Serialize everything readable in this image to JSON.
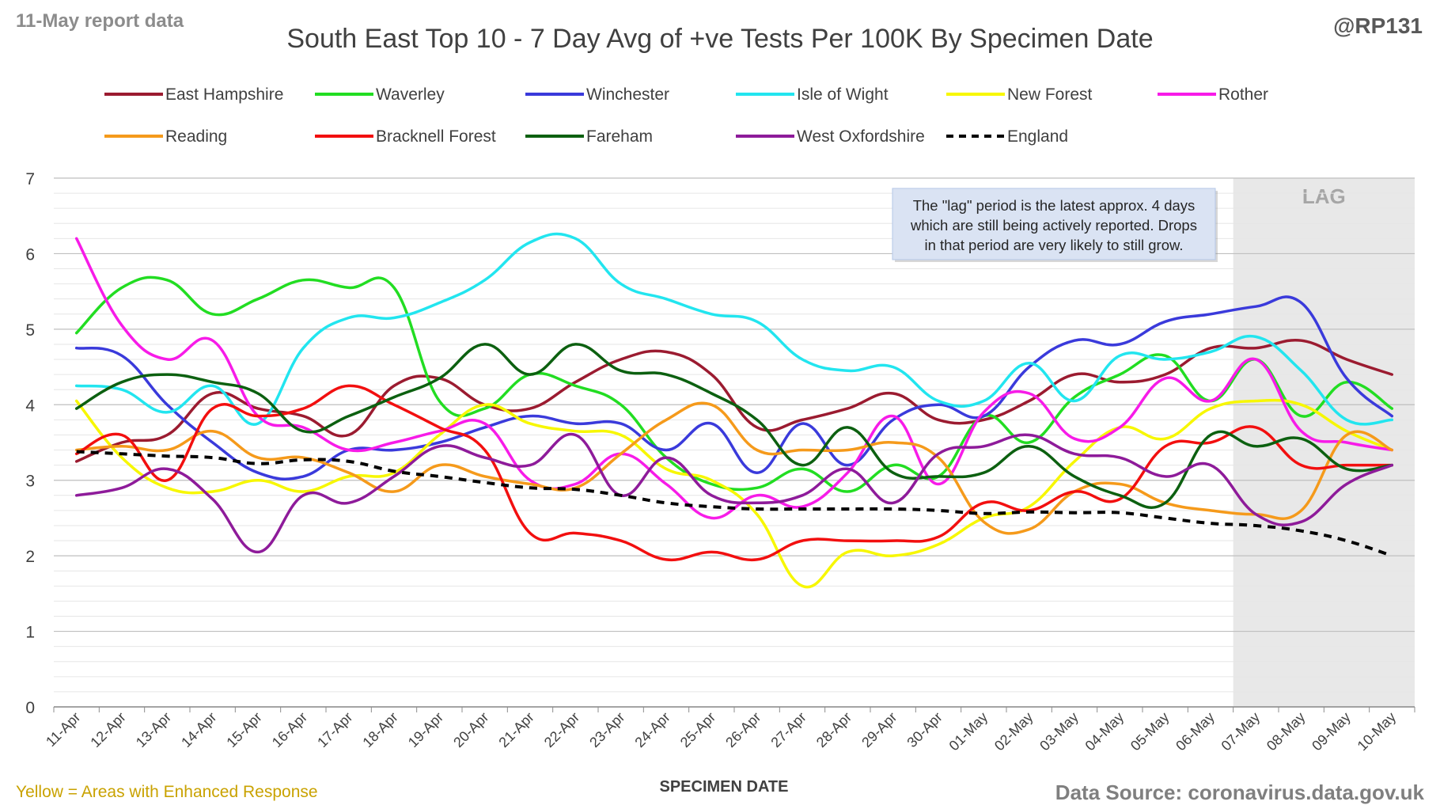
{
  "header": {
    "report_date": "11-May report data",
    "handle": "@RP131"
  },
  "footer": {
    "enhanced_note": "Yellow = Areas with Enhanced Response",
    "source": "Data Source: coronavirus.data.gov.uk"
  },
  "annotation": {
    "lag_label": "LAG",
    "lines": [
      "The \"lag\" period is the latest approx. 4 days",
      "which are still being actively reported.  Drops",
      "in that period are very likely to still grow."
    ]
  },
  "colors": {
    "background": "#ffffff",
    "gridline": "#d9d9d9",
    "lag_shade": "#e8e8e8",
    "note_fill": "#dae3f3",
    "title_text": "#404040",
    "enhanced_text": "#c9a200",
    "footer_text": "#7f7f7f"
  },
  "chart_data": {
    "type": "line",
    "title": "South East Top 10 - 7 Day Avg of +ve Tests Per 100K By Specimen Date",
    "xlabel": "SPECIMEN DATE",
    "ylabel": "",
    "ylim": [
      0,
      7
    ],
    "yticks": [
      0,
      1,
      2,
      3,
      4,
      5,
      6,
      7
    ],
    "grid": true,
    "legend_position": "top",
    "lag_start": "07-May",
    "categories": [
      "11-Apr",
      "12-Apr",
      "13-Apr",
      "14-Apr",
      "15-Apr",
      "16-Apr",
      "17-Apr",
      "18-Apr",
      "19-Apr",
      "20-Apr",
      "21-Apr",
      "22-Apr",
      "23-Apr",
      "24-Apr",
      "25-Apr",
      "26-Apr",
      "27-Apr",
      "28-Apr",
      "29-Apr",
      "30-Apr",
      "01-May",
      "02-May",
      "03-May",
      "04-May",
      "05-May",
      "06-May",
      "07-May",
      "08-May",
      "09-May",
      "10-May"
    ],
    "series": [
      {
        "name": "East Hampshire",
        "color": "#9b1b30",
        "dash": false,
        "values": [
          3.25,
          3.5,
          3.6,
          4.15,
          3.95,
          3.85,
          3.6,
          4.25,
          4.35,
          4.0,
          3.95,
          4.3,
          4.6,
          4.7,
          4.4,
          3.7,
          3.8,
          3.95,
          4.15,
          3.8,
          3.8,
          4.05,
          4.4,
          4.3,
          4.4,
          4.75,
          4.75,
          4.85,
          4.6,
          4.4
        ]
      },
      {
        "name": "Waverley",
        "color": "#22dd22",
        "dash": false,
        "values": [
          4.95,
          5.55,
          5.65,
          5.2,
          5.4,
          5.65,
          5.55,
          5.55,
          4.05,
          3.95,
          4.4,
          4.25,
          4.0,
          3.3,
          2.95,
          2.9,
          3.15,
          2.85,
          3.2,
          3.05,
          3.85,
          3.5,
          4.1,
          4.4,
          4.65,
          4.05,
          4.6,
          3.85,
          4.3,
          3.95
        ]
      },
      {
        "name": "Winchester",
        "color": "#3a3adb",
        "dash": false,
        "values": [
          4.75,
          4.65,
          4.0,
          3.5,
          3.1,
          3.05,
          3.4,
          3.4,
          3.5,
          3.7,
          3.85,
          3.75,
          3.75,
          3.4,
          3.75,
          3.1,
          3.75,
          3.2,
          3.8,
          4.0,
          3.85,
          4.5,
          4.85,
          4.8,
          5.1,
          5.2,
          5.3,
          5.35,
          4.35,
          3.85
        ]
      },
      {
        "name": "Isle of Wight",
        "color": "#22e5ef",
        "dash": false,
        "values": [
          4.25,
          4.2,
          3.9,
          4.25,
          3.75,
          4.75,
          5.15,
          5.15,
          5.35,
          5.65,
          6.15,
          6.2,
          5.6,
          5.4,
          5.2,
          5.1,
          4.6,
          4.45,
          4.5,
          4.05,
          4.05,
          4.55,
          4.05,
          4.65,
          4.6,
          4.7,
          4.9,
          4.45,
          3.8,
          3.8
        ]
      },
      {
        "name": "New Forest",
        "color": "#f7f700",
        "dash": false,
        "values": [
          4.05,
          3.3,
          2.9,
          2.85,
          3.0,
          2.85,
          3.05,
          3.1,
          3.6,
          4.0,
          3.75,
          3.65,
          3.6,
          3.15,
          3.0,
          2.55,
          1.6,
          2.05,
          2.0,
          2.15,
          2.5,
          2.65,
          3.25,
          3.7,
          3.55,
          3.95,
          4.05,
          4.0,
          3.65,
          3.4
        ]
      },
      {
        "name": "Rother",
        "color": "#f71be8",
        "dash": false,
        "values": [
          6.2,
          5.05,
          4.6,
          4.85,
          3.85,
          3.7,
          3.4,
          3.5,
          3.65,
          3.75,
          3.0,
          2.95,
          3.35,
          2.95,
          2.5,
          2.8,
          2.65,
          3.1,
          3.85,
          2.95,
          3.9,
          4.15,
          3.55,
          3.7,
          4.35,
          4.05,
          4.6,
          3.65,
          3.5,
          3.4
        ]
      },
      {
        "name": "Reading",
        "color": "#f59a1b",
        "dash": false,
        "values": [
          3.4,
          3.45,
          3.4,
          3.65,
          3.3,
          3.3,
          3.1,
          2.85,
          3.2,
          3.05,
          2.95,
          2.9,
          3.35,
          3.8,
          4.0,
          3.4,
          3.4,
          3.4,
          3.5,
          3.3,
          2.45,
          2.35,
          2.85,
          2.95,
          2.7,
          2.6,
          2.55,
          2.6,
          3.6,
          3.4
        ]
      },
      {
        "name": "Bracknell Forest",
        "color": "#f20f0f",
        "dash": false,
        "values": [
          3.35,
          3.6,
          3.0,
          3.95,
          3.85,
          3.95,
          4.25,
          4.0,
          3.7,
          3.4,
          2.3,
          2.3,
          2.2,
          1.95,
          2.05,
          1.95,
          2.2,
          2.2,
          2.2,
          2.25,
          2.7,
          2.6,
          2.85,
          2.75,
          3.45,
          3.5,
          3.7,
          3.2,
          3.2,
          3.2
        ]
      },
      {
        "name": "Fareham",
        "color": "#0c6010",
        "dash": false,
        "values": [
          3.95,
          4.3,
          4.4,
          4.3,
          4.15,
          3.65,
          3.85,
          4.1,
          4.35,
          4.8,
          4.4,
          4.8,
          4.45,
          4.4,
          4.15,
          3.8,
          3.2,
          3.7,
          3.1,
          3.05,
          3.1,
          3.45,
          3.05,
          2.8,
          2.7,
          3.6,
          3.45,
          3.55,
          3.15,
          3.2
        ]
      },
      {
        "name": "West Oxfordshire",
        "color": "#8e1b9a",
        "dash": false,
        "values": [
          2.8,
          2.9,
          3.15,
          2.75,
          2.05,
          2.8,
          2.7,
          3.05,
          3.45,
          3.3,
          3.2,
          3.6,
          2.8,
          3.3,
          2.8,
          2.7,
          2.8,
          3.15,
          2.7,
          3.35,
          3.45,
          3.6,
          3.35,
          3.3,
          3.05,
          3.2,
          2.55,
          2.45,
          2.95,
          3.2
        ]
      },
      {
        "name": "England",
        "color": "#000000",
        "dash": true,
        "values": [
          3.38,
          3.35,
          3.32,
          3.3,
          3.22,
          3.27,
          3.25,
          3.12,
          3.05,
          2.97,
          2.9,
          2.88,
          2.8,
          2.7,
          2.65,
          2.62,
          2.62,
          2.62,
          2.62,
          2.6,
          2.56,
          2.58,
          2.57,
          2.57,
          2.5,
          2.43,
          2.4,
          2.33,
          2.2,
          2.0
        ]
      }
    ]
  }
}
